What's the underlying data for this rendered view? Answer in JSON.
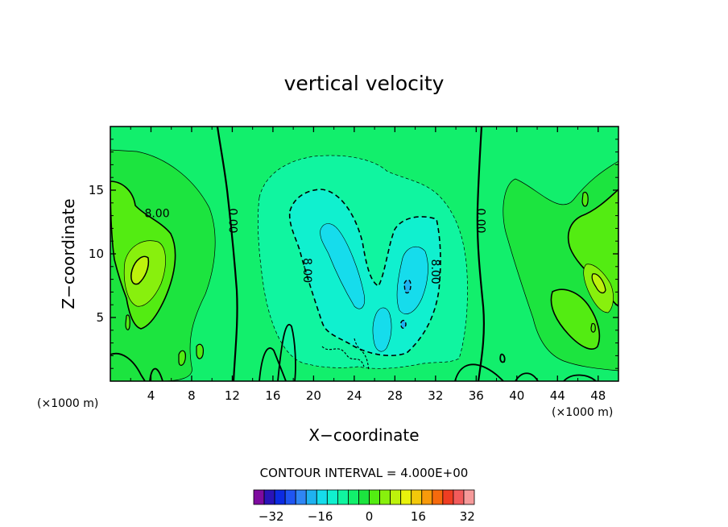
{
  "chart_data": {
    "type": "contour",
    "title": "vertical velocity",
    "xlabel": "X−coordinate",
    "ylabel": "Z−coordinate",
    "x_unit": "(×1000 m)",
    "y_unit": "(×1000 m)",
    "xlim": [
      0,
      50
    ],
    "ylim": [
      0,
      20
    ],
    "x_ticks": [
      4,
      8,
      12,
      16,
      20,
      24,
      28,
      32,
      36,
      40,
      44,
      48
    ],
    "y_ticks": [
      5,
      10,
      15
    ],
    "contour_interval_text": "CONTOUR INTERVAL = 4.000E+00",
    "contour_interval": 4,
    "contour_labels": [
      {
        "text": "8.00",
        "x": 4.6,
        "y": 13.2
      },
      {
        "text": "0.00",
        "x": 12.1,
        "y": 12.6
      },
      {
        "text": "8.00",
        "x": 19.4,
        "y": 8.7
      },
      {
        "text": "8.00",
        "x": 32.0,
        "y": 8.6
      },
      {
        "text": "0.00",
        "x": 36.5,
        "y": 12.6
      }
    ],
    "colorbar": {
      "min": -36,
      "max": 36,
      "step": 4,
      "tick_values": [
        -32,
        -16,
        0,
        16,
        32
      ],
      "tick_labels": [
        "−32",
        "−16",
        "0",
        "16",
        "32"
      ],
      "colors": [
        "#7e0b9f",
        "#2a14b8",
        "#0c2be2",
        "#1f55f2",
        "#2f86f5",
        "#1fb2f0",
        "#16dcec",
        "#10f0cf",
        "#10f5a0",
        "#12ef6c",
        "#1ce43f",
        "#53ec12",
        "#88f00d",
        "#bdf20c",
        "#e9f20c",
        "#f3c80b",
        "#f79a0b",
        "#f66a0d",
        "#ef3d22",
        "#f25b5b",
        "#f69a9a"
      ]
    },
    "features": [
      {
        "x": 4.4,
        "y": 8.9,
        "level": 16
      },
      {
        "x": 47.2,
        "y": 7.3,
        "level": 16
      },
      {
        "x": 22.8,
        "y": 8.5,
        "level": -16
      },
      {
        "x": 29.5,
        "y": 7.0,
        "level": -16
      },
      {
        "x": 26.8,
        "y": 4.2,
        "level": -16
      }
    ]
  }
}
